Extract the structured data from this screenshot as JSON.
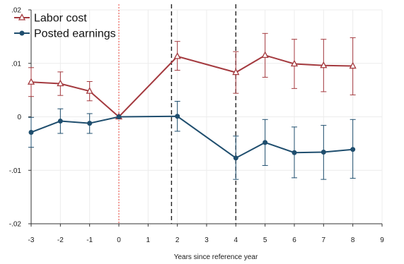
{
  "chart_data": {
    "type": "line",
    "xlabel": "Years since reference year",
    "ylabel": "",
    "xlim": [
      -3,
      9
    ],
    "ylim": [
      -0.02,
      0.02
    ],
    "x_ticks": [
      -3,
      -2,
      -1,
      0,
      1,
      2,
      3,
      4,
      5,
      6,
      7,
      8,
      9
    ],
    "x_tick_labels": [
      "-3",
      "-2",
      "-1",
      "0",
      "1",
      "2",
      "3",
      "4",
      "5",
      "6",
      "7",
      "8",
      "9"
    ],
    "y_ticks": [
      -0.02,
      -0.01,
      0,
      0.01,
      0.02
    ],
    "y_tick_labels": [
      "-.02",
      "-.01",
      "0",
      ".01",
      ".02"
    ],
    "grid": true,
    "legend_position": "top-left",
    "reference_lines": [
      {
        "x": 0,
        "style": "dotted",
        "color": "#e8433a"
      },
      {
        "x": 1.8,
        "style": "dashed",
        "color": "#222222"
      },
      {
        "x": 4,
        "style": "dashed",
        "color": "#222222"
      }
    ],
    "series": [
      {
        "name": "Labor cost",
        "color": "#a43a3f",
        "marker": "triangle",
        "x": [
          -3,
          -2,
          -1,
          0,
          2,
          4,
          5,
          6,
          7,
          8
        ],
        "y": [
          0.0065,
          0.0062,
          0.0048,
          0.0,
          0.0113,
          0.0083,
          0.0115,
          0.0099,
          0.0096,
          0.0095
        ],
        "ci_low": [
          0.0038,
          0.004,
          0.003,
          0.0,
          0.0087,
          0.0044,
          0.0074,
          0.0053,
          0.0047,
          0.0041
        ],
        "ci_high": [
          0.0092,
          0.0084,
          0.0066,
          0.0,
          0.0141,
          0.0122,
          0.0156,
          0.0145,
          0.0145,
          0.0148
        ]
      },
      {
        "name": "Posted earnings",
        "color": "#1f4e6e",
        "marker": "circle",
        "x": [
          -3,
          -2,
          -1,
          0,
          2,
          4,
          5,
          6,
          7,
          8
        ],
        "y": [
          -0.0029,
          -0.0008,
          -0.0012,
          0.0,
          0.0001,
          -0.0077,
          -0.0048,
          -0.0067,
          -0.0066,
          -0.0061
        ],
        "ci_low": [
          -0.0057,
          -0.0031,
          -0.0031,
          0.0,
          -0.0027,
          -0.0117,
          -0.0091,
          -0.0114,
          -0.0117,
          -0.0115
        ],
        "ci_high": [
          -0.0001,
          0.0015,
          0.0006,
          0.0,
          0.0029,
          -0.0036,
          -0.0005,
          -0.0019,
          -0.0016,
          -0.0005
        ]
      }
    ]
  }
}
